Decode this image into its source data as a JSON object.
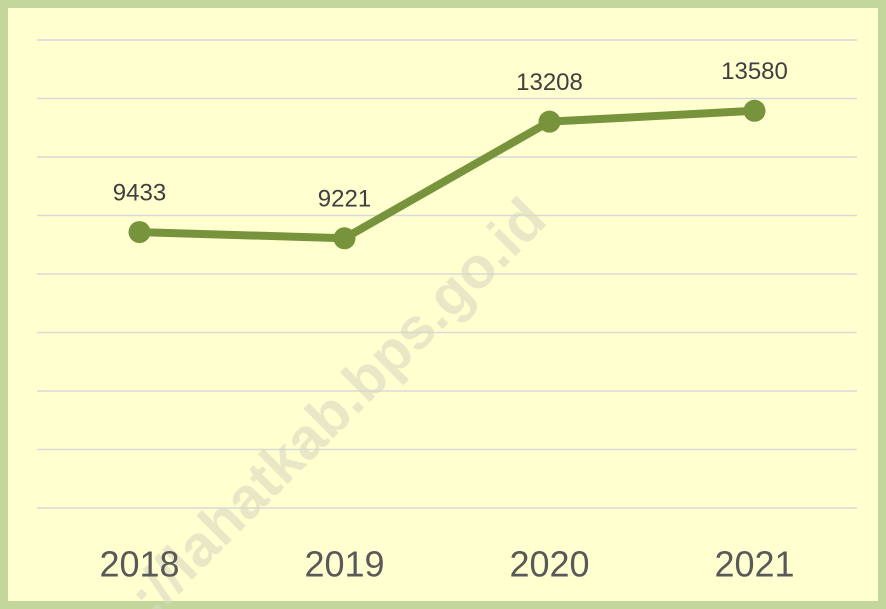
{
  "chart_data": {
    "type": "line",
    "categories": [
      "2018",
      "2019",
      "2020",
      "2021"
    ],
    "series": [
      {
        "color": "#77933c",
        "values": [
          9433,
          9221,
          13208,
          13580
        ]
      }
    ],
    "ylim": [
      0,
      16000
    ],
    "yticks": [
      0,
      2000,
      4000,
      6000,
      8000,
      10000,
      12000,
      14000,
      16000
    ],
    "grid": true,
    "watermark": "://lahatkab.bps.go.id"
  }
}
